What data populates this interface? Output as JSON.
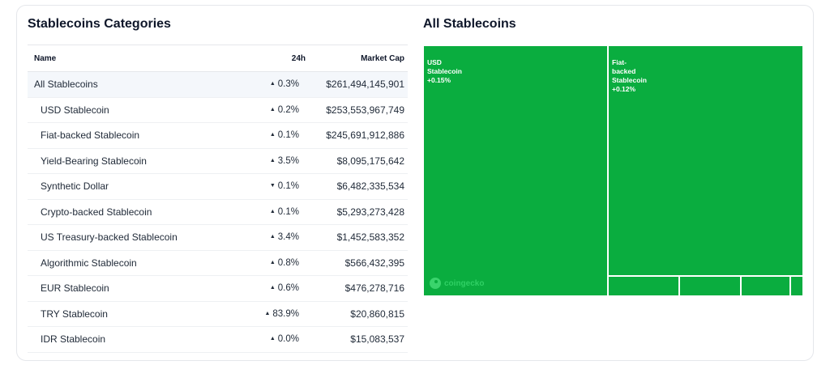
{
  "left_title": "Stablecoins Categories",
  "right_title": "All Stablecoins",
  "table": {
    "headers": {
      "name": "Name",
      "change": "24h",
      "cap": "Market Cap"
    },
    "rows": [
      {
        "name": "All Stablecoins",
        "arrow": "▲",
        "change": "0.3%",
        "cap": "$261,494,145,901"
      },
      {
        "name": "USD Stablecoin",
        "arrow": "▲",
        "change": "0.2%",
        "cap": "$253,553,967,749"
      },
      {
        "name": "Fiat-backed Stablecoin",
        "arrow": "▲",
        "change": "0.1%",
        "cap": "$245,691,912,886"
      },
      {
        "name": "Yield-Bearing Stablecoin",
        "arrow": "▲",
        "change": "3.5%",
        "cap": "$8,095,175,642"
      },
      {
        "name": "Synthetic Dollar",
        "arrow": "▼",
        "change": "0.1%",
        "cap": "$6,482,335,534"
      },
      {
        "name": "Crypto-backed Stablecoin",
        "arrow": "▲",
        "change": "0.1%",
        "cap": "$5,293,273,428"
      },
      {
        "name": "US Treasury-backed Stablecoin",
        "arrow": "▲",
        "change": "3.4%",
        "cap": "$1,452,583,352"
      },
      {
        "name": "Algorithmic Stablecoin",
        "arrow": "▲",
        "change": "0.8%",
        "cap": "$566,432,395"
      },
      {
        "name": "EUR Stablecoin",
        "arrow": "▲",
        "change": "0.6%",
        "cap": "$476,278,716"
      },
      {
        "name": "TRY Stablecoin",
        "arrow": "▲",
        "change": "83.9%",
        "cap": "$20,860,815"
      },
      {
        "name": "IDR Stablecoin",
        "arrow": "▲",
        "change": "0.0%",
        "cap": "$15,083,537"
      }
    ]
  },
  "treemap": {
    "tiles": [
      {
        "label": "USD\nStablecoin",
        "change": "+0.15%"
      },
      {
        "label": "Fiat-\nbacked\nStablecoin",
        "change": "+0.12%"
      }
    ],
    "watermark": "coingecko",
    "tile_color": "#0aad3f"
  },
  "colors": {
    "up": "#16a34a",
    "down": "#dc2626",
    "treemap_green": "#0aad3f"
  }
}
